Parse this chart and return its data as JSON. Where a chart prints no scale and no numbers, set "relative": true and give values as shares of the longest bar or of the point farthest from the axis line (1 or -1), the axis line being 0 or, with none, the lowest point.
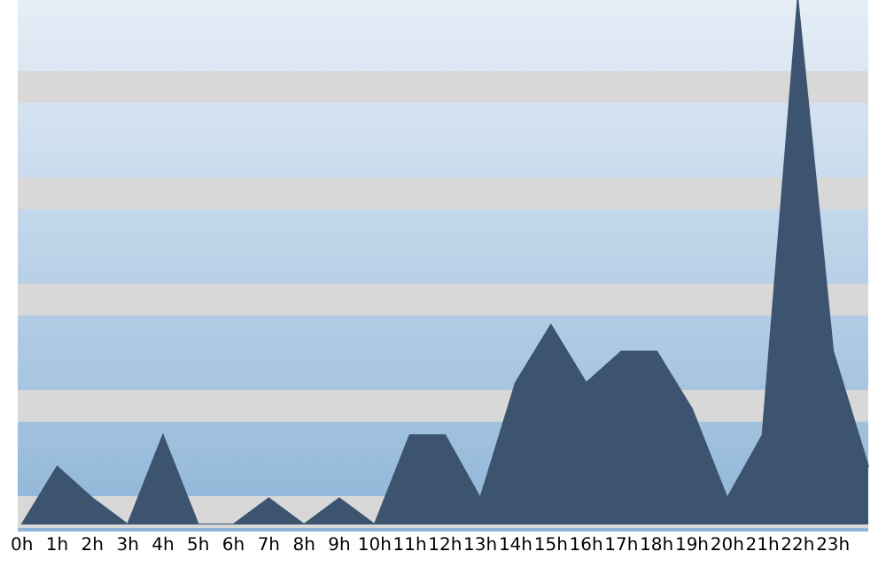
{
  "chart_data": {
    "type": "area",
    "relative": true,
    "categories": [
      "0h",
      "1h",
      "2h",
      "3h",
      "4h",
      "5h",
      "6h",
      "7h",
      "8h",
      "9h",
      "10h",
      "11h",
      "12h",
      "13h",
      "14h",
      "15h",
      "16h",
      "17h",
      "18h",
      "19h",
      "20h",
      "21h",
      "22h",
      "23h",
      null
    ],
    "series": [
      {
        "color": "#3d5470",
        "values": [
          0,
          0.11,
          0.05,
          0,
          0.17,
          0,
          0,
          0.05,
          0,
          0.05,
          0,
          0.17,
          0.17,
          0.05,
          0.27,
          0.38,
          0.27,
          0.33,
          0.33,
          0.22,
          0.05,
          0.17,
          1,
          0.33,
          0.11
        ]
      }
    ],
    "grid": false,
    "legend": false
  }
}
